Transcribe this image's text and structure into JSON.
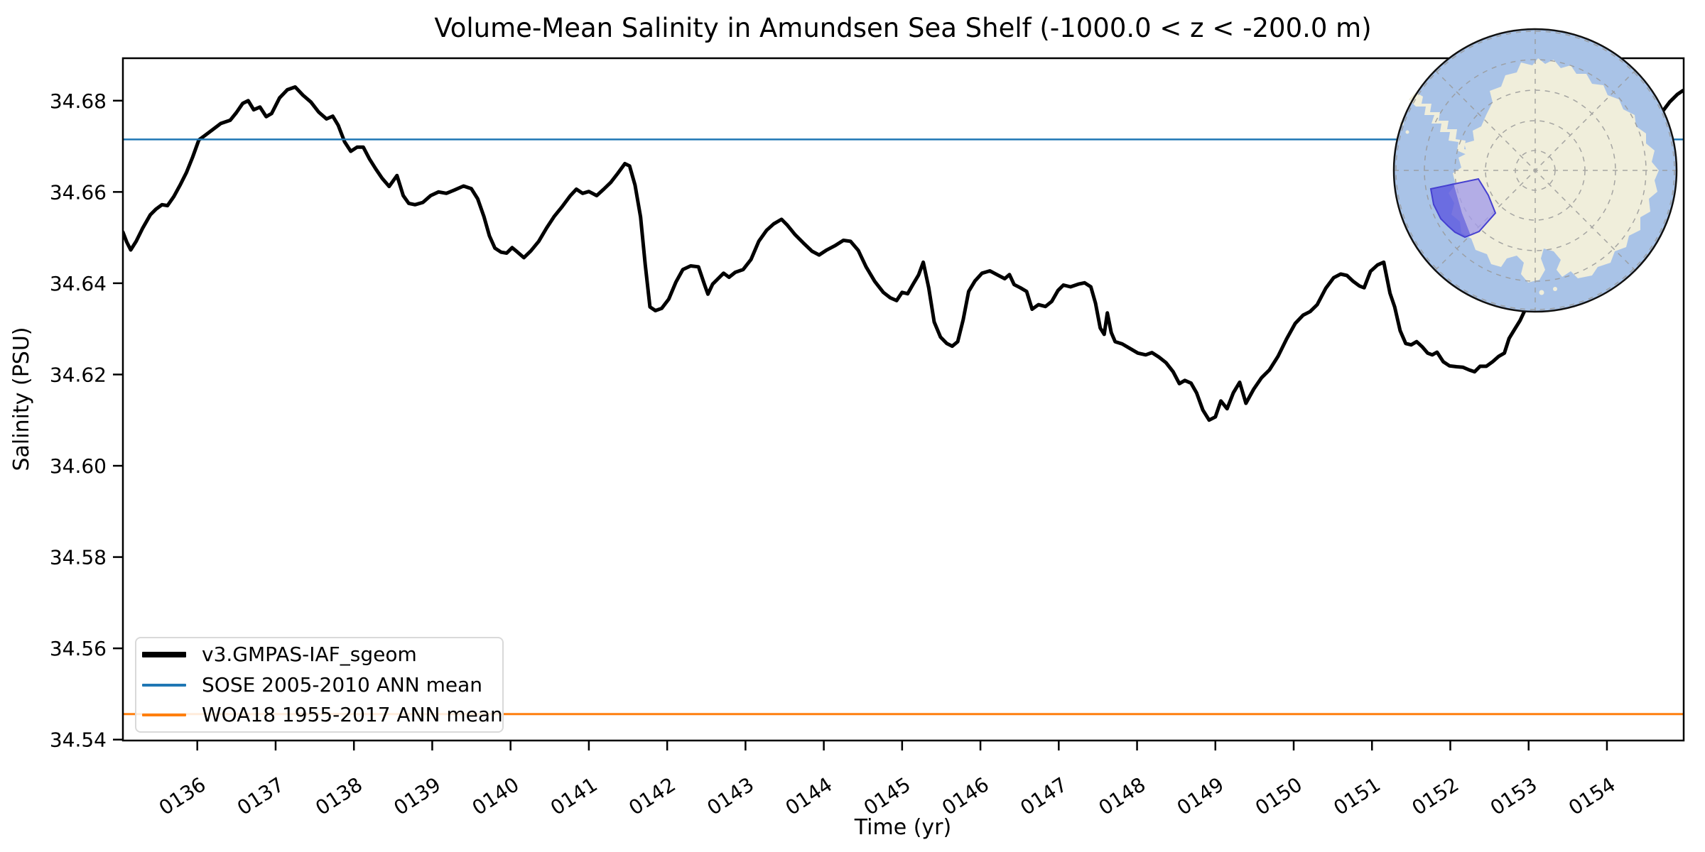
{
  "title": "Volume-Mean Salinity in Amundsen Sea Shelf (-1000.0 < z < -200.0 m)",
  "chart_data": {
    "type": "line",
    "title": "Volume-Mean Salinity in Amundsen Sea Shelf (-1000.0 < z < -200.0 m)",
    "xlabel": "Time (yr)",
    "ylabel": "Salinity (PSU)",
    "xlim": [
      135.05,
      154.98
    ],
    "ylim": [
      34.5398,
      34.6893
    ],
    "grid": false,
    "legend_position": "lower left",
    "xtick_values": [
      136,
      137,
      138,
      139,
      140,
      141,
      142,
      143,
      144,
      145,
      146,
      147,
      148,
      149,
      150,
      151,
      152,
      153,
      154
    ],
    "xtick_labels": [
      "0136",
      "0137",
      "0138",
      "0139",
      "0140",
      "0141",
      "0142",
      "0143",
      "0144",
      "0145",
      "0146",
      "0147",
      "0148",
      "0149",
      "0150",
      "0151",
      "0152",
      "0153",
      "0154"
    ],
    "ytick_values": [
      34.54,
      34.56,
      34.58,
      34.6,
      34.62,
      34.64,
      34.66,
      34.68
    ],
    "ytick_labels": [
      "34.54",
      "34.56",
      "34.58",
      "34.60",
      "34.62",
      "34.64",
      "34.66",
      "34.68"
    ],
    "series": [
      {
        "name": "v3.GMPAS-IAF_sgeom",
        "type": "line",
        "color": "#000000",
        "linewidth": 5,
        "x": [
          135.05,
          135.1,
          135.15,
          135.22,
          135.3,
          135.4,
          135.47,
          135.55,
          135.62,
          135.7,
          135.78,
          135.86,
          135.94,
          136.02,
          136.1,
          136.2,
          136.3,
          136.42,
          136.5,
          136.58,
          136.65,
          136.72,
          136.8,
          136.88,
          136.95,
          137.05,
          137.15,
          137.25,
          137.35,
          137.45,
          137.55,
          137.65,
          137.73,
          137.8,
          137.88,
          137.96,
          138.04,
          138.12,
          138.2,
          138.28,
          138.36,
          138.45,
          138.55,
          138.63,
          138.7,
          138.78,
          138.88,
          138.98,
          139.08,
          139.18,
          139.28,
          139.4,
          139.5,
          139.58,
          139.66,
          139.73,
          139.8,
          139.88,
          139.95,
          140.02,
          140.09,
          140.17,
          140.26,
          140.36,
          140.46,
          140.56,
          140.66,
          140.76,
          140.84,
          140.92,
          141.0,
          141.1,
          141.19,
          141.28,
          141.37,
          141.46,
          141.52,
          141.59,
          141.66,
          141.72,
          141.78,
          141.85,
          141.93,
          142.02,
          142.11,
          142.2,
          142.3,
          142.4,
          142.48,
          142.52,
          142.58,
          142.65,
          142.72,
          142.79,
          142.87,
          142.97,
          143.07,
          143.17,
          143.27,
          143.36,
          143.46,
          143.53,
          143.63,
          143.74,
          143.85,
          143.94,
          144.03,
          144.14,
          144.25,
          144.34,
          144.44,
          144.54,
          144.65,
          144.76,
          144.85,
          144.93,
          145.0,
          145.07,
          145.14,
          145.21,
          145.27,
          145.34,
          145.41,
          145.49,
          145.57,
          145.64,
          145.71,
          145.78,
          145.85,
          145.93,
          146.02,
          146.12,
          146.22,
          146.31,
          146.37,
          146.43,
          146.51,
          146.59,
          146.66,
          146.74,
          146.83,
          146.91,
          146.99,
          147.06,
          147.15,
          147.25,
          147.33,
          147.41,
          147.47,
          147.53,
          147.58,
          147.62,
          147.67,
          147.72,
          147.81,
          147.91,
          148.01,
          148.11,
          148.19,
          148.28,
          148.37,
          148.46,
          148.54,
          148.61,
          148.69,
          148.76,
          148.84,
          148.92,
          149.0,
          149.07,
          149.15,
          149.23,
          149.31,
          149.39,
          149.49,
          149.59,
          149.69,
          149.8,
          149.91,
          150.02,
          150.12,
          150.21,
          150.3,
          150.41,
          150.51,
          150.6,
          150.68,
          150.76,
          150.84,
          150.9,
          150.98,
          151.07,
          151.15,
          151.23,
          151.29,
          151.36,
          151.43,
          151.5,
          151.57,
          151.64,
          151.71,
          151.77,
          151.83,
          151.91,
          151.99,
          152.08,
          152.16,
          152.24,
          152.31,
          152.38,
          152.46,
          152.54,
          152.62,
          152.69,
          152.75,
          152.81,
          152.89,
          153.0,
          153.12,
          153.25,
          153.4,
          153.55,
          153.7,
          153.85,
          154.0,
          154.15,
          154.3,
          154.45,
          154.58,
          154.7,
          154.8,
          154.9,
          154.97
        ],
        "y": [
          34.6512,
          34.649,
          34.6473,
          34.6492,
          34.652,
          34.655,
          34.6562,
          34.6572,
          34.657,
          34.659,
          34.6615,
          34.6642,
          34.6676,
          34.6714,
          34.6724,
          34.6737,
          34.675,
          34.6757,
          34.6774,
          34.6794,
          34.68,
          34.678,
          34.6786,
          34.6765,
          34.6772,
          34.6806,
          34.6824,
          34.683,
          34.6812,
          34.6797,
          34.6775,
          34.676,
          34.6766,
          34.6746,
          34.671,
          34.6689,
          34.6698,
          34.6698,
          34.6672,
          34.665,
          34.663,
          34.6612,
          34.6636,
          34.6592,
          34.6575,
          34.6572,
          34.6577,
          34.6592,
          34.66,
          34.6597,
          34.6604,
          34.6613,
          34.6607,
          34.6585,
          34.6546,
          34.6504,
          34.6477,
          34.6468,
          34.6466,
          34.6478,
          34.6468,
          34.6456,
          34.6471,
          34.6492,
          34.6521,
          34.6547,
          34.6568,
          34.6591,
          34.6606,
          34.6597,
          34.6601,
          34.6592,
          34.6606,
          34.6621,
          34.6641,
          34.6662,
          34.6657,
          34.6615,
          34.6545,
          34.644,
          34.6348,
          34.634,
          34.6345,
          34.6365,
          34.6402,
          34.643,
          34.6438,
          34.6436,
          34.6395,
          34.6376,
          34.6398,
          34.641,
          34.6422,
          34.6413,
          34.6424,
          34.643,
          34.6452,
          34.6492,
          34.6516,
          34.653,
          34.654,
          34.6528,
          34.6507,
          34.6488,
          34.647,
          34.6462,
          34.6472,
          34.6482,
          34.6494,
          34.6492,
          34.6472,
          34.6436,
          34.6404,
          34.638,
          34.6368,
          34.6362,
          34.638,
          34.6377,
          34.6398,
          34.6418,
          34.6446,
          34.639,
          34.6315,
          34.6282,
          34.6268,
          34.6262,
          34.6272,
          34.632,
          34.6382,
          34.6405,
          34.6422,
          34.6427,
          34.6418,
          34.641,
          34.6419,
          34.6397,
          34.639,
          34.6382,
          34.6343,
          34.6353,
          34.6349,
          34.636,
          34.6384,
          34.6396,
          34.6392,
          34.6398,
          34.6401,
          34.6392,
          34.6356,
          34.6302,
          34.6288,
          34.6335,
          34.6292,
          34.6272,
          34.6267,
          34.6257,
          34.6247,
          34.6243,
          34.6248,
          34.6238,
          34.6226,
          34.6206,
          34.618,
          34.6187,
          34.6181,
          34.616,
          34.6122,
          34.61,
          34.6107,
          34.6142,
          34.6125,
          34.616,
          34.6183,
          34.6137,
          34.6168,
          34.6193,
          34.621,
          34.624,
          34.6278,
          34.6312,
          34.633,
          34.6338,
          34.6353,
          34.6389,
          34.6412,
          34.642,
          34.6417,
          34.6404,
          34.6394,
          34.639,
          34.6426,
          34.644,
          34.6446,
          34.6378,
          34.6348,
          34.6296,
          34.6268,
          34.6265,
          34.6272,
          34.6261,
          34.6247,
          34.6243,
          34.6249,
          34.6228,
          34.6219,
          34.6217,
          34.6216,
          34.621,
          34.6206,
          34.6218,
          34.6218,
          34.6228,
          34.624,
          34.6247,
          34.6279,
          34.6296,
          34.6318,
          34.6358,
          34.6398,
          34.6438,
          34.6484,
          34.6528,
          34.6572,
          34.6613,
          34.665,
          34.668,
          34.6706,
          34.6731,
          34.6752,
          34.6774,
          34.6797,
          34.6814,
          34.6822
        ]
      },
      {
        "name": "SOSE 2005-2010 ANN mean",
        "type": "hline",
        "color": "#1f77b4",
        "linewidth": 2.5,
        "y": 34.6715
      },
      {
        "name": "WOA18 1955-2017 ANN mean",
        "type": "hline",
        "color": "#ff7f0e",
        "linewidth": 3,
        "y": 34.5456
      }
    ]
  },
  "legend": {
    "entries": [
      "v3.GMPAS-IAF_sgeom",
      "SOSE 2005-2010 ANN mean",
      "WOA18 1955-2017 ANN mean"
    ]
  },
  "map_inset": {
    "name": "antarctica-polar-inset",
    "ocean": "#a9c3e7",
    "land": "#f0eedb",
    "graticule": "#999999",
    "region_fill_light": "#a49ce9",
    "region_fill_dark": "#5b58e0",
    "region_edge": "#4540d0",
    "border": "#111111"
  }
}
